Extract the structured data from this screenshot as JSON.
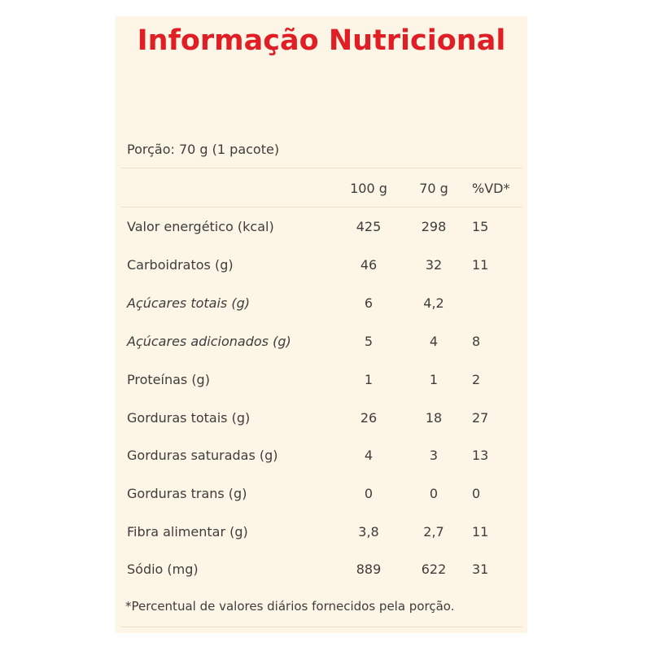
{
  "title": "Informação Nutricional",
  "serving": "Porção: 70 g (1 pacote)",
  "columns": [
    "100 g",
    "70 g",
    "%VD*"
  ],
  "rows": [
    {
      "name": "Valor energético (kcal)",
      "per100": "425",
      "perServing": "298",
      "vd": "15"
    },
    {
      "name": "Carboidratos (g)",
      "per100": "46",
      "perServing": "32",
      "vd": "11"
    },
    {
      "name": "Açúcares totais (g)",
      "per100": "6",
      "perServing": "4,2",
      "vd": ""
    },
    {
      "name": "Açúcares adicionados (g)",
      "per100": "5",
      "perServing": "4",
      "vd": "8"
    },
    {
      "name": "Proteínas (g)",
      "per100": "1",
      "perServing": "1",
      "vd": "2"
    },
    {
      "name": "Gorduras totais (g)",
      "per100": "26",
      "perServing": "18",
      "vd": "27"
    },
    {
      "name": "Gorduras saturadas (g)",
      "per100": "4",
      "perServing": "3",
      "vd": "13"
    },
    {
      "name": "Gorduras trans (g)",
      "per100": "0",
      "perServing": "0",
      "vd": "0"
    },
    {
      "name": "Fibra alimentar (g)",
      "per100": "3,8",
      "perServing": "2,7",
      "vd": "11"
    },
    {
      "name": "Sódio (mg)",
      "per100": "889",
      "perServing": "622",
      "vd": "31"
    }
  ],
  "footnote": "*Percentual de valores diários fornecidos pela porção.",
  "colors": {
    "title": "#e01e25",
    "panel": "#fdf6e6",
    "text": "#3d3d3d",
    "rule": "#ece2c8"
  }
}
